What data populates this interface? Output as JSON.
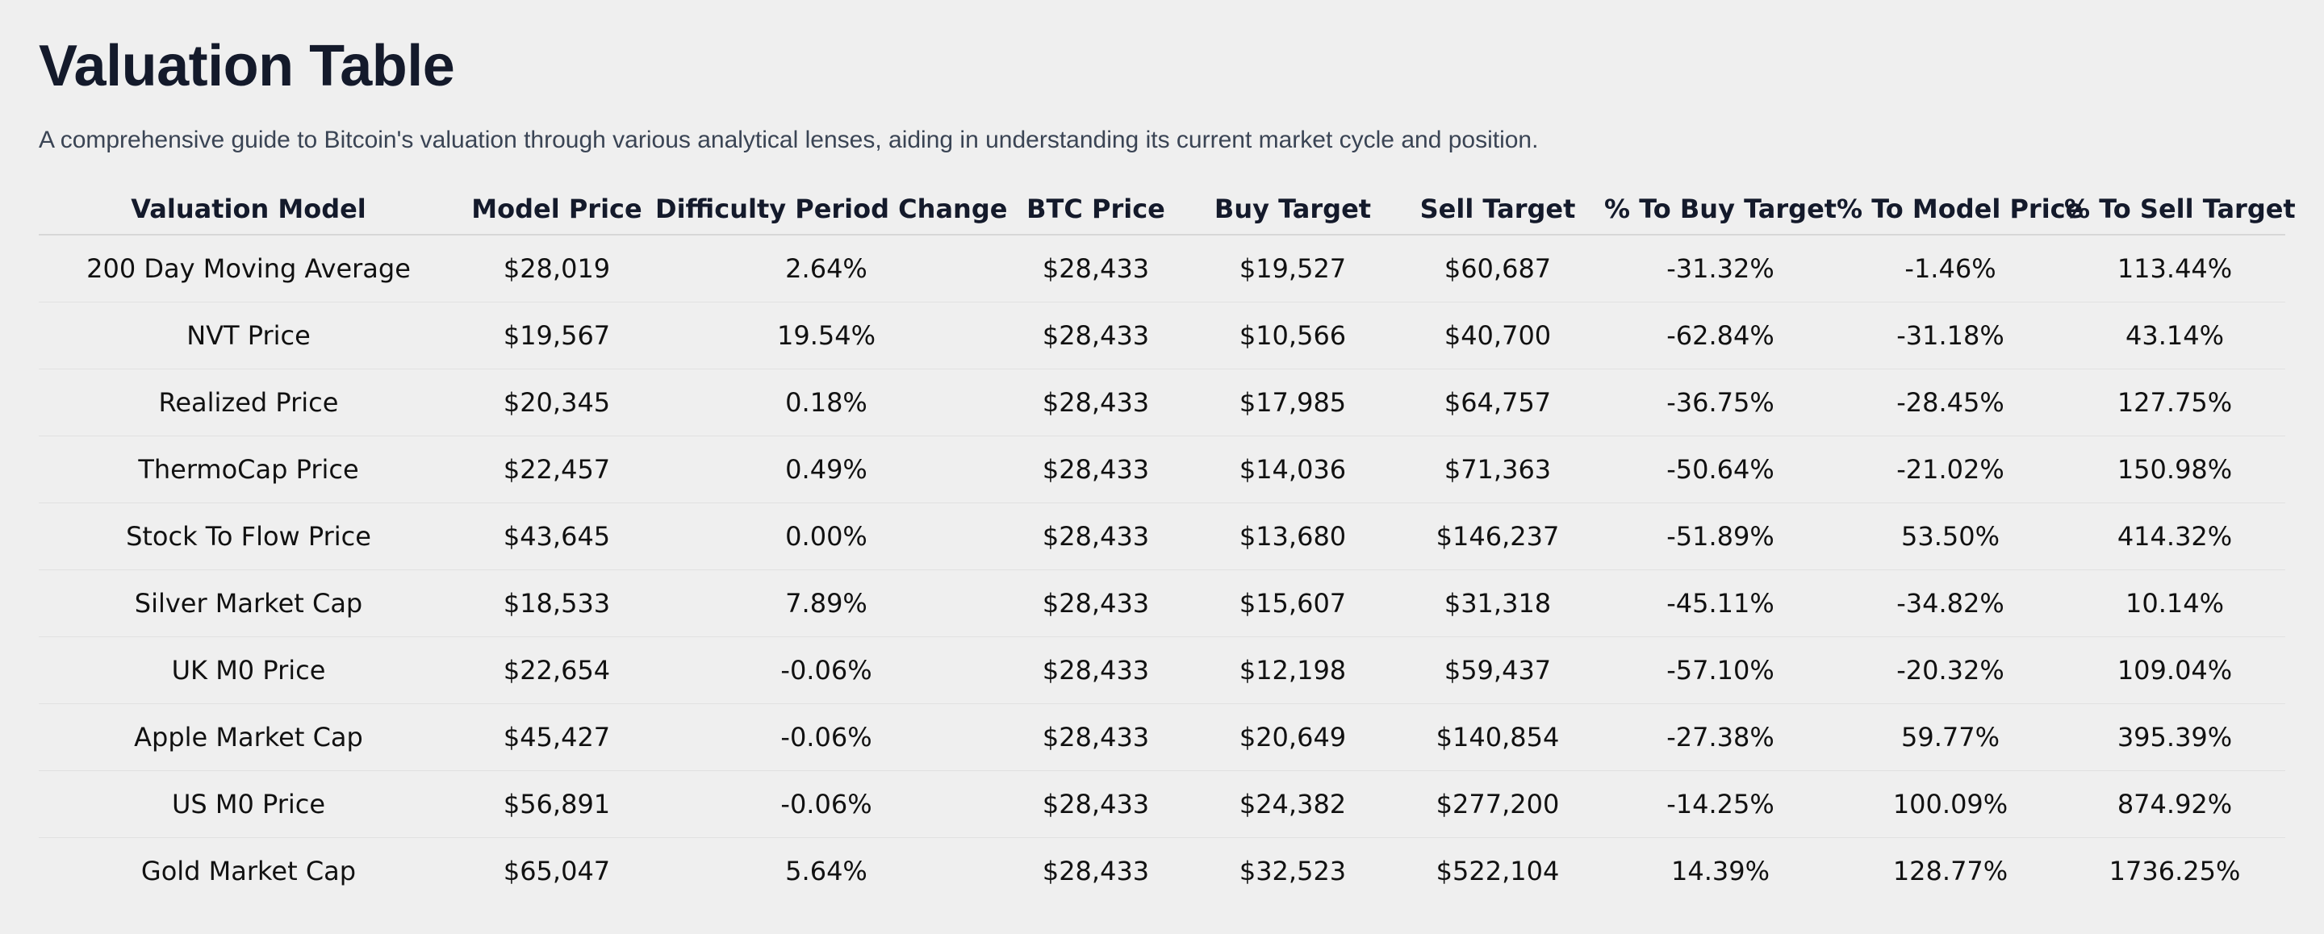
{
  "header": {
    "title": "Valuation Table",
    "subtitle": "A comprehensive guide to Bitcoin's valuation through various analytical lenses, aiding in understanding its current market cycle and position."
  },
  "colors": {
    "positive": "#1f8a1f",
    "negative": "#e0161b",
    "neutral": "#111111",
    "background": "#efefef"
  },
  "table": {
    "columns": [
      "Valuation Model",
      "Model Price",
      "Difficulty Period Change",
      "BTC Price",
      "Buy Target",
      "Sell Target",
      "% To Buy Target",
      "% To Model Price",
      "% To Sell Target"
    ],
    "rows": [
      {
        "model": "200 Day Moving Average",
        "model_price": "$28,019",
        "difficulty_change": "2.64%",
        "btc_price": "$28,433",
        "buy_target": "$19,527",
        "sell_target": "$60,687",
        "pct_buy": "-31.32%",
        "pct_model": "-1.46%",
        "pct_sell": "113.44%"
      },
      {
        "model": "NVT Price",
        "model_price": "$19,567",
        "difficulty_change": "19.54%",
        "btc_price": "$28,433",
        "buy_target": "$10,566",
        "sell_target": "$40,700",
        "pct_buy": "-62.84%",
        "pct_model": "-31.18%",
        "pct_sell": "43.14%"
      },
      {
        "model": "Realized Price",
        "model_price": "$20,345",
        "difficulty_change": "0.18%",
        "btc_price": "$28,433",
        "buy_target": "$17,985",
        "sell_target": "$64,757",
        "pct_buy": "-36.75%",
        "pct_model": "-28.45%",
        "pct_sell": "127.75%"
      },
      {
        "model": "ThermoCap Price",
        "model_price": "$22,457",
        "difficulty_change": "0.49%",
        "btc_price": "$28,433",
        "buy_target": "$14,036",
        "sell_target": "$71,363",
        "pct_buy": "-50.64%",
        "pct_model": "-21.02%",
        "pct_sell": "150.98%"
      },
      {
        "model": "Stock To Flow Price",
        "model_price": "$43,645",
        "difficulty_change": "0.00%",
        "btc_price": "$28,433",
        "buy_target": "$13,680",
        "sell_target": "$146,237",
        "pct_buy": "-51.89%",
        "pct_model": "53.50%",
        "pct_sell": "414.32%"
      },
      {
        "model": "Silver Market Cap",
        "model_price": "$18,533",
        "difficulty_change": "7.89%",
        "btc_price": "$28,433",
        "buy_target": "$15,607",
        "sell_target": "$31,318",
        "pct_buy": "-45.11%",
        "pct_model": "-34.82%",
        "pct_sell": "10.14%"
      },
      {
        "model": "UK M0 Price",
        "model_price": "$22,654",
        "difficulty_change": "-0.06%",
        "btc_price": "$28,433",
        "buy_target": "$12,198",
        "sell_target": "$59,437",
        "pct_buy": "-57.10%",
        "pct_model": "-20.32%",
        "pct_sell": "109.04%"
      },
      {
        "model": "Apple Market Cap",
        "model_price": "$45,427",
        "difficulty_change": "-0.06%",
        "btc_price": "$28,433",
        "buy_target": "$20,649",
        "sell_target": "$140,854",
        "pct_buy": "-27.38%",
        "pct_model": "59.77%",
        "pct_sell": "395.39%"
      },
      {
        "model": "US M0 Price",
        "model_price": "$56,891",
        "difficulty_change": "-0.06%",
        "btc_price": "$28,433",
        "buy_target": "$24,382",
        "sell_target": "$277,200",
        "pct_buy": "-14.25%",
        "pct_model": "100.09%",
        "pct_sell": "874.92%"
      },
      {
        "model": "Gold Market Cap",
        "model_price": "$65,047",
        "difficulty_change": "5.64%",
        "btc_price": "$28,433",
        "buy_target": "$32,523",
        "sell_target": "$522,104",
        "pct_buy": "14.39%",
        "pct_model": "128.77%",
        "pct_sell": "1736.25%"
      }
    ]
  }
}
